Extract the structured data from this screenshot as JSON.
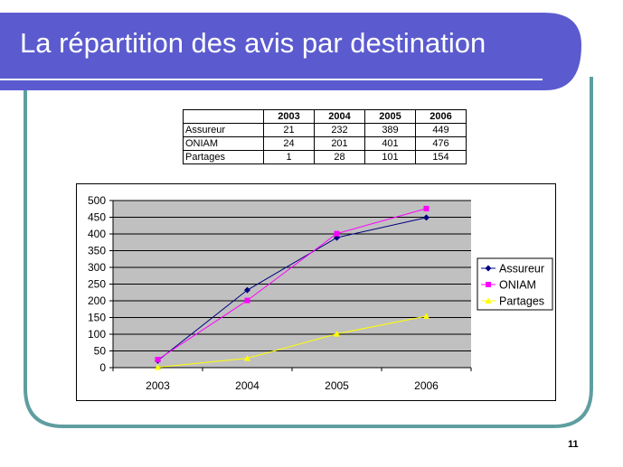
{
  "slide": {
    "title": "La répartition des avis par destination",
    "page_number": "11",
    "colors": {
      "title_band": "#5B5BCF",
      "frame_border": "#5F9EA0"
    }
  },
  "table": {
    "header": [
      "",
      "2003",
      "2004",
      "2005",
      "2006"
    ],
    "rows": [
      {
        "label": "Assureur",
        "values": [
          "21",
          "232",
          "389",
          "449"
        ]
      },
      {
        "label": "ONIAM",
        "values": [
          "24",
          "201",
          "401",
          "476"
        ]
      },
      {
        "label": "Partages",
        "values": [
          "1",
          "28",
          "101",
          "154"
        ]
      }
    ]
  },
  "chart_data": {
    "type": "line",
    "categories": [
      "2003",
      "2004",
      "2005",
      "2006"
    ],
    "series": [
      {
        "name": "Assureur",
        "values": [
          21,
          232,
          389,
          449
        ],
        "color": "#000080",
        "marker": "diamond"
      },
      {
        "name": "ONIAM",
        "values": [
          24,
          201,
          401,
          476
        ],
        "color": "#FF00FF",
        "marker": "square"
      },
      {
        "name": "Partages",
        "values": [
          1,
          28,
          101,
          154
        ],
        "color": "#FFFF00",
        "marker": "triangle"
      }
    ],
    "title": "",
    "xlabel": "",
    "ylabel": "",
    "ylim": [
      0,
      500
    ],
    "yticks": [
      "0",
      "50",
      "100",
      "150",
      "200",
      "250",
      "300",
      "350",
      "400",
      "450",
      "500"
    ],
    "grid": true,
    "plot_background": "#C0C0C0",
    "legend_position": "right"
  }
}
